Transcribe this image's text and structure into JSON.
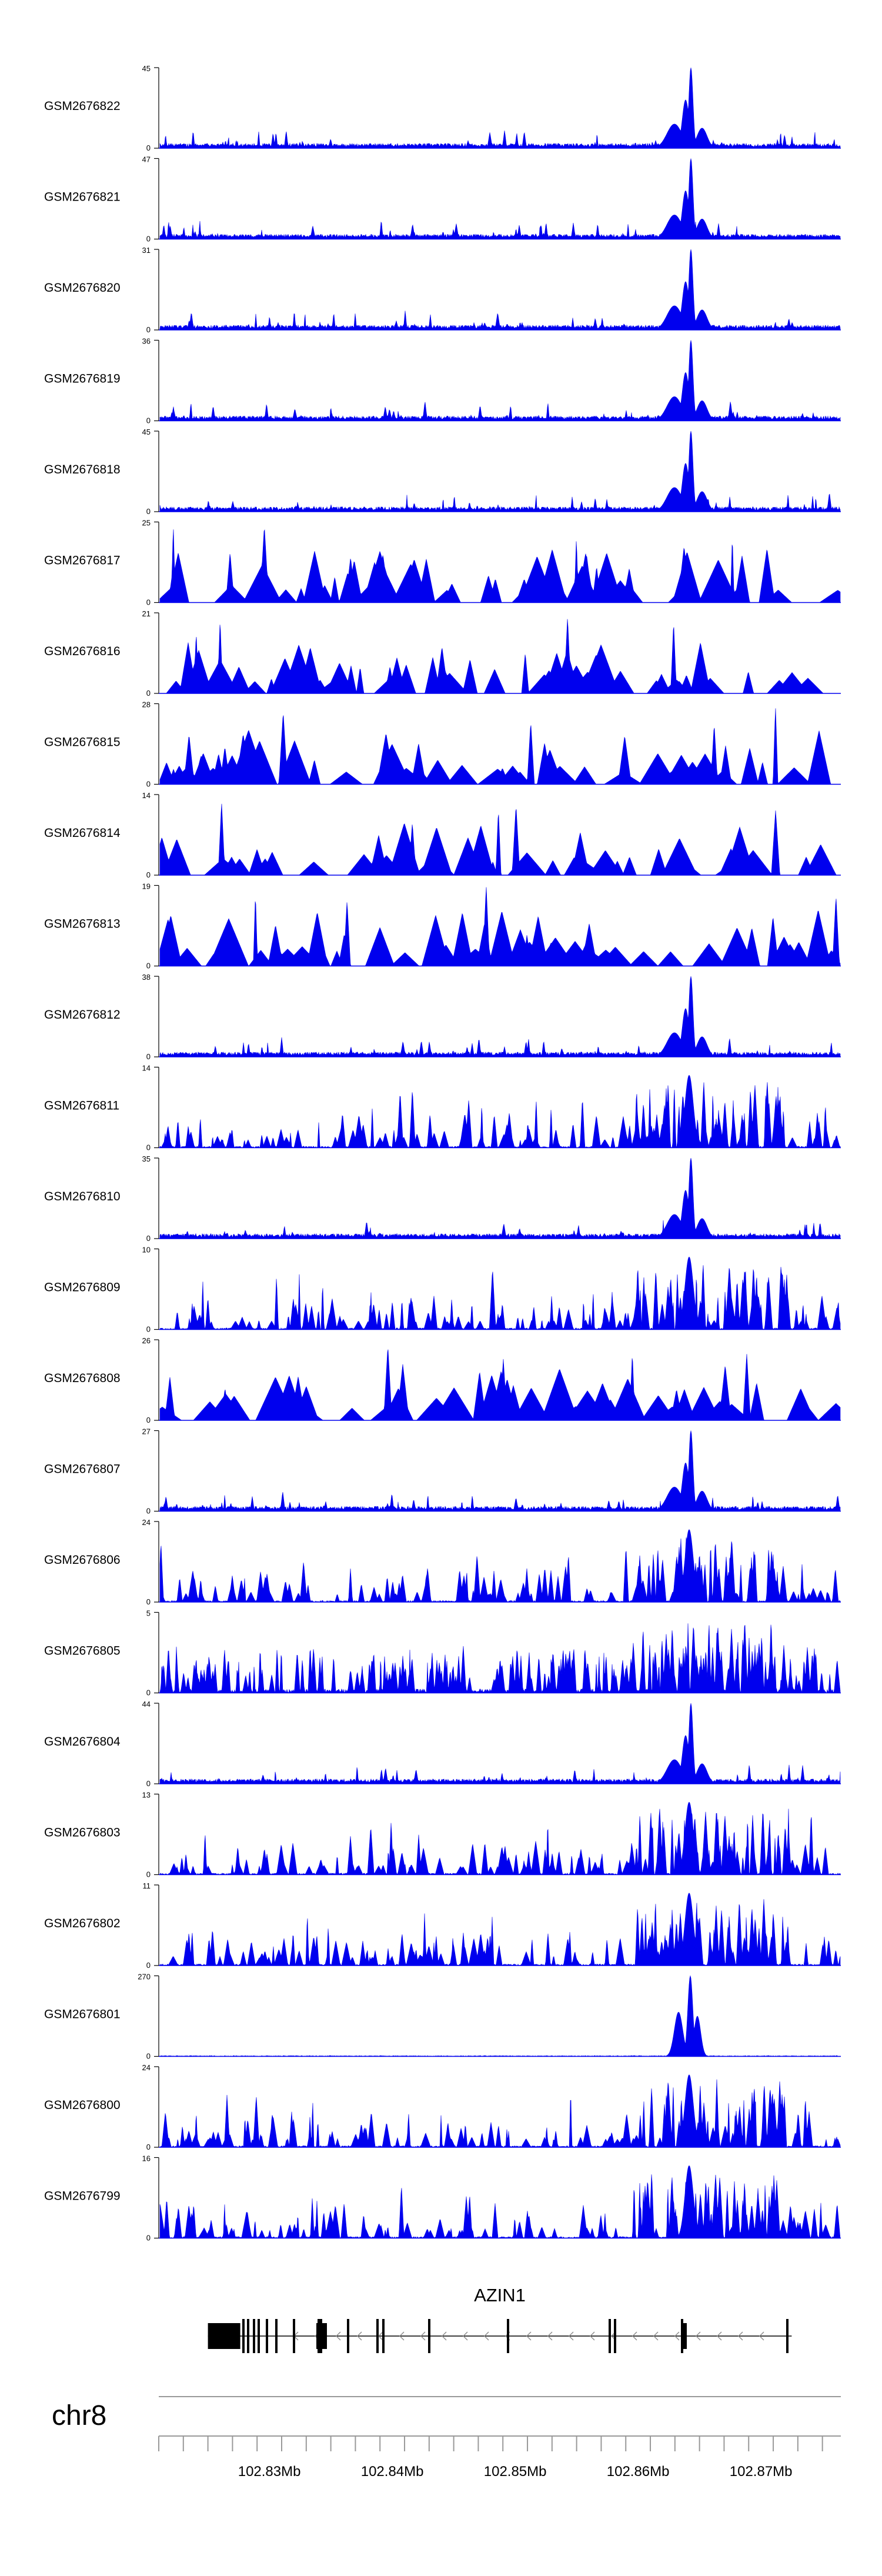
{
  "chart_data": {
    "type": "area",
    "title": "",
    "genome": {
      "chromosome": "chr8",
      "range_start_mb": 102.821,
      "range_end_mb": 102.8765,
      "tick_labels": [
        "102.83Mb",
        "102.84Mb",
        "102.85Mb",
        "102.86Mb",
        "102.87Mb"
      ],
      "tick_values_mb": [
        102.83,
        102.84,
        102.85,
        102.86,
        102.87
      ]
    },
    "gene": {
      "name": "AZIN1",
      "strand": "-",
      "start_mb": 102.825,
      "end_mb": 102.8725
    },
    "tracks": [
      {
        "name": "GSM2676822",
        "ymax": 45,
        "ymin": 0,
        "profile": "peak",
        "seed": 22
      },
      {
        "name": "GSM2676821",
        "ymax": 47,
        "ymin": 0,
        "profile": "peak",
        "seed": 21
      },
      {
        "name": "GSM2676820",
        "ymax": 31,
        "ymin": 0,
        "profile": "peak",
        "seed": 20
      },
      {
        "name": "GSM2676819",
        "ymax": 36,
        "ymin": 0,
        "profile": "peak",
        "seed": 19
      },
      {
        "name": "GSM2676818",
        "ymax": 45,
        "ymin": 0,
        "profile": "peak",
        "seed": 18
      },
      {
        "name": "GSM2676817",
        "ymax": 25,
        "ymin": 0,
        "profile": "sparse",
        "seed": 17
      },
      {
        "name": "GSM2676816",
        "ymax": 21,
        "ymin": 0,
        "profile": "sparse",
        "seed": 16
      },
      {
        "name": "GSM2676815",
        "ymax": 28,
        "ymin": 0,
        "profile": "sparse",
        "seed": 15
      },
      {
        "name": "GSM2676814",
        "ymax": 14,
        "ymin": 0,
        "profile": "sparse",
        "seed": 14
      },
      {
        "name": "GSM2676813",
        "ymax": 19,
        "ymin": 0,
        "profile": "sparse",
        "seed": 13
      },
      {
        "name": "GSM2676812",
        "ymax": 38,
        "ymin": 0,
        "profile": "peak",
        "seed": 12
      },
      {
        "name": "GSM2676811",
        "ymax": 14,
        "ymin": 0,
        "profile": "dense",
        "seed": 11
      },
      {
        "name": "GSM2676810",
        "ymax": 35,
        "ymin": 0,
        "profile": "peak",
        "seed": 10
      },
      {
        "name": "GSM2676809",
        "ymax": 10,
        "ymin": 0,
        "profile": "dense",
        "seed": 9
      },
      {
        "name": "GSM2676808",
        "ymax": 26,
        "ymin": 0,
        "profile": "sparse",
        "seed": 8
      },
      {
        "name": "GSM2676807",
        "ymax": 27,
        "ymin": 0,
        "profile": "peak",
        "seed": 7
      },
      {
        "name": "GSM2676806",
        "ymax": 24,
        "ymin": 0,
        "profile": "dense",
        "seed": 6
      },
      {
        "name": "GSM2676805",
        "ymax": 5,
        "ymin": 0,
        "profile": "uniform",
        "seed": 5
      },
      {
        "name": "GSM2676804",
        "ymax": 44,
        "ymin": 0,
        "profile": "peak",
        "seed": 4
      },
      {
        "name": "GSM2676803",
        "ymax": 13,
        "ymin": 0,
        "profile": "dense",
        "seed": 3
      },
      {
        "name": "GSM2676802",
        "ymax": 11,
        "ymin": 0,
        "profile": "dense",
        "seed": 2
      },
      {
        "name": "GSM2676801",
        "ymax": 270,
        "ymin": 0,
        "profile": "spike",
        "seed": 1
      },
      {
        "name": "GSM2676800",
        "ymax": 24,
        "ymin": 0,
        "profile": "dense",
        "seed": 100
      },
      {
        "name": "GSM2676799",
        "ymax": 16,
        "ymin": 0,
        "profile": "dense",
        "seed": 99
      }
    ],
    "xlabel": "",
    "ylabel": "",
    "series_color": "#0000ee",
    "gene_color": "#000000",
    "axis_color": "#808080"
  }
}
